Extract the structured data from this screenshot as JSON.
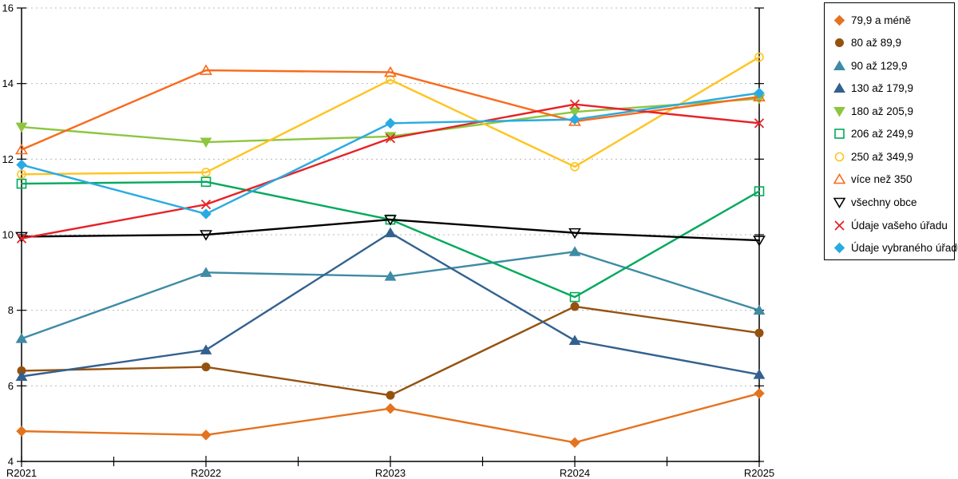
{
  "chart_data": {
    "type": "line",
    "title": "",
    "xlabel": "",
    "ylabel": "",
    "x_categories": [
      "R2021",
      "R2022",
      "R2023",
      "R2024",
      "R2025"
    ],
    "ylim": [
      4,
      16
    ],
    "yticks": [
      4,
      6,
      8,
      10,
      12,
      14,
      16
    ],
    "grid": "horizontal-dashed",
    "gridline_color": "#b8b8b8",
    "axis_color": "#000000",
    "legend_position": "right-outside",
    "series": [
      {
        "name": "79,9 a méně",
        "marker": "diamond",
        "fill": "filled",
        "color": "#e4731f",
        "values": [
          4.8,
          4.7,
          5.4,
          4.5,
          5.8
        ]
      },
      {
        "name": "80 až 89,9",
        "marker": "circle",
        "fill": "filled",
        "color": "#95520f",
        "values": [
          6.4,
          6.5,
          5.75,
          8.1,
          7.4
        ]
      },
      {
        "name": "90 až 129,9",
        "marker": "triangle-up",
        "fill": "filled",
        "color": "#3e8ba5",
        "values": [
          7.25,
          9.0,
          8.9,
          9.55,
          8.0
        ]
      },
      {
        "name": "130 až 179,9",
        "marker": "triangle-up",
        "fill": "filled",
        "color": "#33618f",
        "values": [
          6.25,
          6.95,
          10.05,
          7.2,
          6.3
        ]
      },
      {
        "name": "180 až 205,9",
        "marker": "triangle-down",
        "fill": "filled",
        "color": "#8dc63f",
        "values": [
          12.85,
          12.45,
          12.6,
          13.25,
          13.6
        ]
      },
      {
        "name": "206 až 249,9",
        "marker": "square",
        "fill": "open",
        "color": "#00a95c",
        "values": [
          11.35,
          11.4,
          10.4,
          8.35,
          11.15
        ]
      },
      {
        "name": "250 až 349,9",
        "marker": "circle",
        "fill": "open",
        "color": "#ffc41e",
        "values": [
          11.6,
          11.65,
          14.1,
          11.8,
          14.7
        ]
      },
      {
        "name": "více než 350",
        "marker": "triangle-up",
        "fill": "open",
        "color": "#f96a1b",
        "values": [
          12.25,
          14.35,
          14.3,
          13.0,
          13.65
        ]
      },
      {
        "name": "všechny obce",
        "marker": "triangle-down",
        "fill": "open",
        "color": "#000000",
        "values": [
          9.95,
          10.0,
          10.4,
          10.05,
          9.85
        ]
      },
      {
        "name": "Údaje vašeho úřadu",
        "marker": "x",
        "fill": "open",
        "color": "#e62227",
        "values": [
          9.9,
          10.8,
          12.55,
          13.45,
          12.95
        ]
      },
      {
        "name": "Údaje vybraného úřadu",
        "marker": "diamond",
        "fill": "filled",
        "color": "#29abe2",
        "values": [
          11.85,
          10.55,
          12.95,
          13.05,
          13.75
        ]
      }
    ]
  }
}
